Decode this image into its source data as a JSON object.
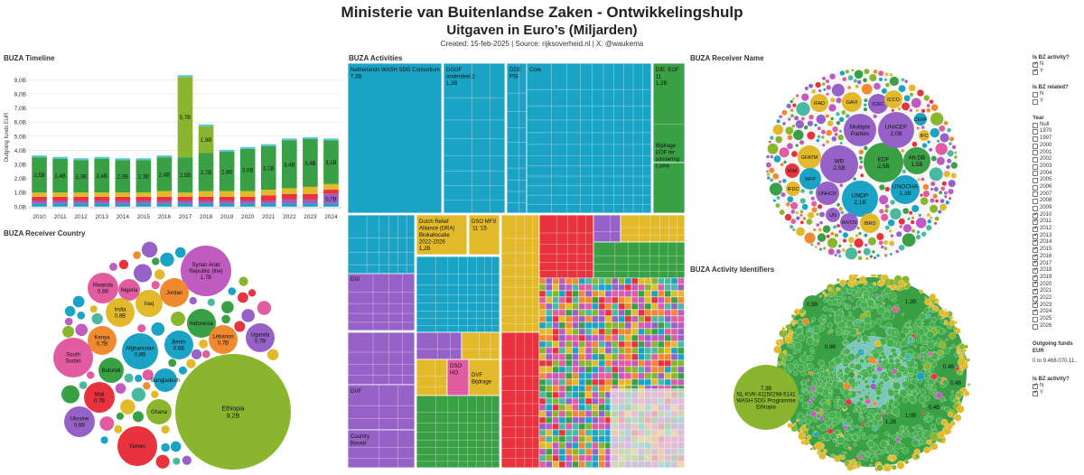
{
  "header": {
    "title": "Ministerie van Buitenlandse Zaken  - Ontwikkelingshulp",
    "subtitle": "Uitgaven in Euro’s (Miljarden)",
    "credit": "Created: 15-feb-2025 | Source: rijksoverheid.nl | X: @waukema"
  },
  "panels": {
    "timeline": "BUZA Timeline",
    "activities": "BUZA Activities",
    "receiver_name": "BUZA Receiver Name",
    "receiver_country": "BUZA Receiver Country",
    "activity_ids": "BUZA Activity Identifiers"
  },
  "colors": {
    "green": "#3aa045",
    "teal": "#1ba3c6",
    "olive": "#8ab52e",
    "yellow": "#e3b92c",
    "purple": "#9762c7",
    "pink": "#e25ca2",
    "red": "#e8333f",
    "orange": "#f08a30"
  },
  "chart_data": [
    {
      "type": "bar",
      "title": "BUZA Timeline",
      "ylabel": "Outgoing funds EUR",
      "ylim": [
        0,
        10
      ],
      "yticks": [
        "0,0B",
        "1,0B",
        "2,0B",
        "3,0B",
        "4,0B",
        "5,0B",
        "6,0B",
        "7,0B",
        "8,0B",
        "9,0B"
      ],
      "categories": [
        "2010",
        "2011",
        "2012",
        "2013",
        "2014",
        "2015",
        "2016",
        "2017",
        "2018",
        "2019",
        "2020",
        "2021",
        "2022",
        "2023",
        "2024"
      ],
      "series": [
        {
          "name": "Olive",
          "color": "#8ab52e",
          "values": [
            0,
            0,
            0,
            0,
            0,
            0,
            0,
            5.7,
            1.9,
            0,
            0,
            0,
            0,
            0,
            0
          ]
        },
        {
          "name": "Green",
          "color": "#3aa045",
          "values": [
            2.5,
            2.4,
            2.3,
            2.4,
            2.3,
            2.3,
            2.4,
            2.5,
            2.7,
            2.8,
            3.0,
            3.1,
            3.4,
            3.4,
            3.1
          ]
        },
        {
          "name": "Yellow",
          "color": "#e3b92c",
          "values": [
            0.3,
            0.3,
            0.3,
            0.3,
            0.3,
            0.3,
            0.4,
            0.3,
            0.4,
            0.4,
            0.4,
            0.4,
            0.4,
            0.5,
            0.4
          ]
        },
        {
          "name": "Red",
          "color": "#e8333f",
          "values": [
            0.3,
            0.3,
            0.3,
            0.3,
            0.3,
            0.3,
            0.3,
            0.3,
            0.3,
            0.3,
            0.3,
            0.4,
            0.4,
            0.4,
            0.3
          ]
        },
        {
          "name": "Purple",
          "color": "#9762c7",
          "values": [
            0.2,
            0.2,
            0.2,
            0.2,
            0.2,
            0.2,
            0.2,
            0.2,
            0.2,
            0.2,
            0.2,
            0.2,
            0.3,
            0.3,
            0.7
          ]
        },
        {
          "name": "Teal",
          "color": "#1ba3c6",
          "values": [
            0.2,
            0.2,
            0.2,
            0.2,
            0.2,
            0.2,
            0.2,
            0.2,
            0.2,
            0.2,
            0.2,
            0.2,
            0.2,
            0.2,
            0.2
          ]
        }
      ],
      "data_labels": [
        {
          "category": "2010",
          "series": "Green",
          "text": "2,5B"
        },
        {
          "category": "2011",
          "series": "Green",
          "text": "2,4B"
        },
        {
          "category": "2012",
          "series": "Green",
          "text": "2,3B"
        },
        {
          "category": "2013",
          "series": "Green",
          "text": "2,4B"
        },
        {
          "category": "2014",
          "series": "Green",
          "text": "2,3B"
        },
        {
          "category": "2015",
          "series": "Green",
          "text": "2,3B"
        },
        {
          "category": "2016",
          "series": "Green",
          "text": "2,4B"
        },
        {
          "category": "2017",
          "series": "Olive",
          "text": "5,7B"
        },
        {
          "category": "2017",
          "series": "Green",
          "text": "2,5B"
        },
        {
          "category": "2018",
          "series": "Olive",
          "text": "1,9B"
        },
        {
          "category": "2018",
          "series": "Green",
          "text": "2,7B"
        },
        {
          "category": "2019",
          "series": "Green",
          "text": "2,8B"
        },
        {
          "category": "2020",
          "series": "Green",
          "text": "3,0B"
        },
        {
          "category": "2021",
          "series": "Green",
          "text": "3,1B"
        },
        {
          "category": "2022",
          "series": "Green",
          "text": "3,4B"
        },
        {
          "category": "2023",
          "series": "Green",
          "text": "3,4B"
        },
        {
          "category": "2024",
          "series": "Green",
          "text": "3,1B"
        },
        {
          "category": "2024",
          "series": "Purple",
          "text": "0,7B"
        }
      ]
    },
    {
      "type": "treemap",
      "title": "BUZA Activities",
      "labelled_blocks": [
        {
          "group": "teal",
          "label": "Netherlands WASH SDG Consortium",
          "value": "7,3B"
        },
        {
          "group": "teal",
          "label": "DGGF onderdeel 2",
          "value": "1,3B"
        },
        {
          "group": "teal",
          "label": "DDE PSI"
        },
        {
          "group": "teal",
          "label": "Core"
        },
        {
          "group": "green",
          "label": "DIE: EOF 11",
          "value": "1,2B"
        },
        {
          "group": "green",
          "label": "Bijdrage EOF ter uitvoering Lome"
        },
        {
          "group": "yellow",
          "label": "Dutch Relief Alliance (DRA) Blokallocatie 2022-2026",
          "value": "1,2B"
        },
        {
          "group": "yellow",
          "label": "DSO MFS '11 '15"
        },
        {
          "group": "purple",
          "label": "DSI"
        },
        {
          "group": "purple",
          "label": "DVF"
        },
        {
          "group": "purple",
          "label": "Country Based"
        },
        {
          "group": "pink",
          "label": "DSO HO"
        },
        {
          "group": "yellow",
          "label": "DVF Bijdrage"
        }
      ]
    },
    {
      "type": "bubble",
      "title": "BUZA Receiver Name",
      "labelled_bubbles": [
        {
          "name": "EDF",
          "value": 2.5,
          "label": "EDF\n2,5B",
          "color": "#3aa045"
        },
        {
          "name": "WB",
          "value": 2.5,
          "label": "WB\n2,5B",
          "color": "#9762c7"
        },
        {
          "name": "UNICEF",
          "value": 2.0,
          "label": "UNICEF\n2,0B",
          "color": "#9762c7"
        },
        {
          "name": "UNDP",
          "value": 2.1,
          "label": "UNDP\n2,1B",
          "color": "#1ba3c6"
        },
        {
          "name": "Multiple Parties",
          "value": 1.8,
          "label": "Multiple\nParties",
          "color": "#9762c7"
        },
        {
          "name": "Afr.DB",
          "value": 1.5,
          "label": "Afr.DB\n1,5B",
          "color": "#3aa045"
        },
        {
          "name": "UNOCHA",
          "value": 1.3,
          "label": "UNOCHA\n1,3B",
          "color": "#1ba3c6"
        },
        {
          "name": "GFATM",
          "value": 1.0,
          "label": "GFATM",
          "color": "#e3b92c"
        },
        {
          "name": "WFP",
          "value": 0.9,
          "label": "WFP",
          "color": "#1ba3c6"
        },
        {
          "name": "UNHCR",
          "value": 0.9,
          "label": "UNHCR",
          "color": "#9762c7"
        },
        {
          "name": "IBRD",
          "value": 0.8,
          "label": "IBRD",
          "color": "#e3b92c"
        },
        {
          "name": "GAVI",
          "value": 0.7,
          "label": "GAVI",
          "color": "#e3b92c"
        },
        {
          "name": "ICRC",
          "value": 0.7,
          "label": "ICRC",
          "color": "#9762c7"
        },
        {
          "name": "ICCO",
          "value": 0.6,
          "label": "ICCO",
          "color": "#e3b92c"
        },
        {
          "name": "IFAD",
          "value": 0.5,
          "label": "IFAD",
          "color": "#e3b92c"
        },
        {
          "name": "HIVOS",
          "value": 0.5,
          "label": "HIVOS",
          "color": "#9762c7"
        },
        {
          "name": "UN",
          "value": 0.4,
          "label": "UN",
          "color": "#9762c7"
        },
        {
          "name": "IOM",
          "value": 0.4,
          "label": "IOM",
          "color": "#e8333f"
        },
        {
          "name": "IFDC",
          "value": 0.4,
          "label": "IFDC",
          "color": "#e3b92c"
        },
        {
          "name": "CERF",
          "value": 0.3,
          "label": "CERF",
          "color": "#1ba3c6"
        },
        {
          "name": "IFC",
          "value": 0.3,
          "label": "IFC",
          "color": "#e3b92c"
        }
      ]
    },
    {
      "type": "bubble",
      "title": "BUZA Receiver Country",
      "labelled_bubbles": [
        {
          "name": "Ethiopia",
          "value": 9.2,
          "label": "Ethiopia\n9,2B",
          "color": "#8ab52e"
        },
        {
          "name": "Syrian Arab Republic (the)",
          "value": 1.7,
          "label": "Syrian Arab\nRepublic (the)\n1,7B",
          "color": "#c05bc0"
        },
        {
          "name": "Rwanda",
          "value": 0.6,
          "label": "Rwanda\n0,6B",
          "color": "#e25ca2"
        },
        {
          "name": "Nigeria",
          "value": 0.5,
          "label": "Nigeria",
          "color": "#e25ca2"
        },
        {
          "name": "Iraq",
          "value": 0.5,
          "label": "Iraq",
          "color": "#e3b92c"
        },
        {
          "name": "Jordan",
          "value": 0.5,
          "label": "Jordan",
          "color": "#f08a30"
        },
        {
          "name": "India",
          "value": 0.8,
          "label": "India\n0,8B",
          "color": "#e3b92c"
        },
        {
          "name": "Indonesia",
          "value": 0.5,
          "label": "Indonesia",
          "color": "#3aa045"
        },
        {
          "name": "Kenya",
          "value": 0.7,
          "label": "Kenya\n0,7B",
          "color": "#f08a30"
        },
        {
          "name": "Afghanistan",
          "value": 0.8,
          "label": "Afghanistan\n0,8B",
          "color": "#1ba3c6"
        },
        {
          "name": "Benin",
          "value": 0.6,
          "label": "Benin\n0,6B",
          "color": "#1ba3c6"
        },
        {
          "name": "Lebanon",
          "value": 0.7,
          "label": "Lebanon\n0,7B",
          "color": "#f08a30"
        },
        {
          "name": "Uganda",
          "value": 0.7,
          "label": "Uganda\n0,7B",
          "color": "#9762c7"
        },
        {
          "name": "South Sudan",
          "value": 1.0,
          "label": "South\nSudan",
          "color": "#e25ca2"
        },
        {
          "name": "Burundi",
          "value": 0.5,
          "label": "Burundi",
          "color": "#3aa045"
        },
        {
          "name": "Bangladesh",
          "value": 0.5,
          "label": "Bangladesh",
          "color": "#1ba3c6"
        },
        {
          "name": "Mali",
          "value": 0.7,
          "label": "Mali\n0,7B",
          "color": "#e8333f"
        },
        {
          "name": "Ghana",
          "value": 0.5,
          "label": "Ghana",
          "color": "#8ab52e"
        },
        {
          "name": "Ukraine",
          "value": 0.6,
          "label": "Ukraine\n0,6B",
          "color": "#9762c7"
        },
        {
          "name": "Yemen",
          "value": 0.8,
          "label": "Yemen",
          "color": "#e8333f"
        }
      ]
    },
    {
      "type": "bubble",
      "title": "BUZA Activity Identifiers",
      "labelled_bubbles": [
        {
          "name": "NL-KVK-41150298-5141 WASH SDG Programme Ethiopia",
          "value": 7.3,
          "label": "7,3B\nNL-KVK-41150298-5141\nWASH SDG Programme\nEthiopia",
          "color": "#8ab52e"
        },
        {
          "name": "id-a",
          "value": 1.2,
          "label": "1,2B",
          "color": "#3aa045"
        },
        {
          "name": "id-b",
          "value": 0.5,
          "label": "0,5B",
          "color": "#3aa045"
        },
        {
          "name": "id-c",
          "value": 0.9,
          "label": "0,9B",
          "color": "#3aa045"
        },
        {
          "name": "id-d",
          "value": 0.4,
          "label": "0,4B",
          "color": "#3aa045"
        },
        {
          "name": "id-e",
          "value": 0.4,
          "label": "0,4B",
          "color": "#3aa045"
        },
        {
          "name": "id-f",
          "value": 0.4,
          "label": "0,4B",
          "color": "#3aa045"
        },
        {
          "name": "id-g",
          "value": 1.0,
          "label": "1,0B",
          "color": "#3aa045"
        },
        {
          "name": "id-h",
          "value": 1.2,
          "label": "1,2B",
          "color": "#3aa045"
        }
      ]
    }
  ],
  "filters": {
    "bz_activity_title": "Is BZ activity?",
    "bz_activity_options": [
      {
        "label": "N",
        "checked": true
      },
      {
        "label": "Y",
        "checked": true
      }
    ],
    "bz_related_title": "Is BZ related?",
    "bz_related_options": [
      {
        "label": "N",
        "checked": false
      },
      {
        "label": "Y",
        "checked": false
      }
    ],
    "year_title": "Year",
    "year_options": [
      {
        "label": "Null",
        "checked": false
      },
      {
        "label": "1970",
        "checked": false
      },
      {
        "label": "1997",
        "checked": false
      },
      {
        "label": "2000",
        "checked": false
      },
      {
        "label": "2001",
        "checked": false
      },
      {
        "label": "2002",
        "checked": false
      },
      {
        "label": "2003",
        "checked": false
      },
      {
        "label": "2004",
        "checked": false
      },
      {
        "label": "2005",
        "checked": false
      },
      {
        "label": "2006",
        "checked": false
      },
      {
        "label": "2007",
        "checked": false
      },
      {
        "label": "2008",
        "checked": false
      },
      {
        "label": "2009",
        "checked": false
      },
      {
        "label": "2010",
        "checked": true
      },
      {
        "label": "2011",
        "checked": true
      },
      {
        "label": "2012",
        "checked": true
      },
      {
        "label": "2013",
        "checked": true
      },
      {
        "label": "2014",
        "checked": true
      },
      {
        "label": "2015",
        "checked": true
      },
      {
        "label": "2016",
        "checked": true
      },
      {
        "label": "2017",
        "checked": true
      },
      {
        "label": "2018",
        "checked": true
      },
      {
        "label": "2019",
        "checked": true
      },
      {
        "label": "2020",
        "checked": true
      },
      {
        "label": "2021",
        "checked": true
      },
      {
        "label": "2022",
        "checked": true
      },
      {
        "label": "2023",
        "checked": true
      },
      {
        "label": "2024",
        "checked": true
      },
      {
        "label": "2025",
        "checked": false
      },
      {
        "label": "2026",
        "checked": false
      }
    ],
    "funds_title": "Outgoing funds EUR",
    "funds_range": "0 to 9.468.070.11..",
    "bz_activity2_title": "Is BZ activity?",
    "bz_activity2_options": [
      {
        "label": "N",
        "checked": true
      },
      {
        "label": "Y",
        "checked": true
      }
    ]
  }
}
